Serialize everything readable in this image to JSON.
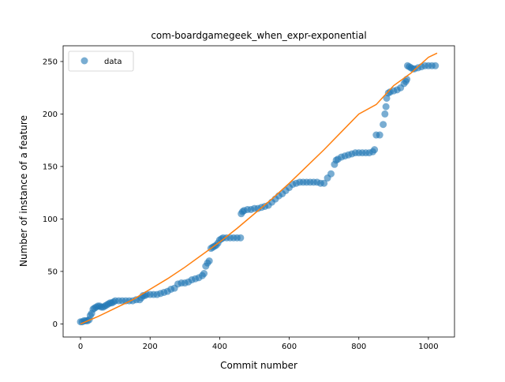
{
  "chart_data": {
    "type": "scatter",
    "title": "com-boardgamegeek_when_expr-exponential",
    "xlabel": "Commit number",
    "ylabel": "Number of instance of a feature",
    "xlim": [
      -50,
      1075
    ],
    "ylim": [
      -12.5,
      265
    ],
    "x_ticks": [
      0,
      200,
      400,
      600,
      800,
      1000
    ],
    "y_ticks": [
      0,
      50,
      100,
      150,
      200,
      250
    ],
    "grid": false,
    "legend": {
      "position": "top-left",
      "entries": [
        "data"
      ]
    },
    "colors": {
      "data": "#1f77b4",
      "fit": "#ff7f0e"
    },
    "series": [
      {
        "name": "data",
        "kind": "scatter",
        "points": [
          [
            0,
            2
          ],
          [
            5,
            2
          ],
          [
            10,
            3
          ],
          [
            15,
            3
          ],
          [
            20,
            3
          ],
          [
            25,
            4
          ],
          [
            28,
            8
          ],
          [
            32,
            10
          ],
          [
            36,
            14
          ],
          [
            40,
            15
          ],
          [
            45,
            16
          ],
          [
            50,
            17
          ],
          [
            55,
            17
          ],
          [
            60,
            16
          ],
          [
            65,
            16
          ],
          [
            70,
            17
          ],
          [
            75,
            18
          ],
          [
            80,
            19
          ],
          [
            85,
            20
          ],
          [
            90,
            20
          ],
          [
            95,
            21
          ],
          [
            100,
            22
          ],
          [
            110,
            22
          ],
          [
            120,
            22
          ],
          [
            130,
            22
          ],
          [
            140,
            22
          ],
          [
            150,
            22
          ],
          [
            160,
            23
          ],
          [
            170,
            23
          ],
          [
            175,
            25
          ],
          [
            180,
            27
          ],
          [
            185,
            27
          ],
          [
            190,
            28
          ],
          [
            200,
            28
          ],
          [
            210,
            28
          ],
          [
            220,
            28
          ],
          [
            230,
            29
          ],
          [
            240,
            30
          ],
          [
            250,
            31
          ],
          [
            260,
            33
          ],
          [
            270,
            34
          ],
          [
            280,
            38
          ],
          [
            290,
            39
          ],
          [
            300,
            39
          ],
          [
            310,
            40
          ],
          [
            320,
            42
          ],
          [
            330,
            43
          ],
          [
            340,
            44
          ],
          [
            350,
            46
          ],
          [
            355,
            48
          ],
          [
            360,
            55
          ],
          [
            365,
            58
          ],
          [
            370,
            60
          ],
          [
            375,
            72
          ],
          [
            380,
            73
          ],
          [
            385,
            74
          ],
          [
            390,
            75
          ],
          [
            395,
            77
          ],
          [
            400,
            80
          ],
          [
            405,
            81
          ],
          [
            410,
            82
          ],
          [
            420,
            82
          ],
          [
            430,
            82
          ],
          [
            440,
            82
          ],
          [
            450,
            82
          ],
          [
            460,
            82
          ],
          [
            462,
            105
          ],
          [
            466,
            107
          ],
          [
            470,
            108
          ],
          [
            480,
            109
          ],
          [
            490,
            109
          ],
          [
            500,
            110
          ],
          [
            510,
            110
          ],
          [
            520,
            111
          ],
          [
            530,
            112
          ],
          [
            540,
            113
          ],
          [
            550,
            116
          ],
          [
            560,
            119
          ],
          [
            570,
            122
          ],
          [
            580,
            124
          ],
          [
            590,
            127
          ],
          [
            600,
            130
          ],
          [
            610,
            133
          ],
          [
            620,
            134
          ],
          [
            630,
            135
          ],
          [
            640,
            135
          ],
          [
            650,
            135
          ],
          [
            660,
            135
          ],
          [
            670,
            135
          ],
          [
            680,
            135
          ],
          [
            690,
            134
          ],
          [
            700,
            134
          ],
          [
            710,
            139
          ],
          [
            720,
            143
          ],
          [
            730,
            152
          ],
          [
            735,
            156
          ],
          [
            740,
            157
          ],
          [
            750,
            159
          ],
          [
            760,
            160
          ],
          [
            770,
            161
          ],
          [
            780,
            162
          ],
          [
            790,
            163
          ],
          [
            800,
            163
          ],
          [
            810,
            163
          ],
          [
            820,
            163
          ],
          [
            830,
            163
          ],
          [
            840,
            164
          ],
          [
            845,
            166
          ],
          [
            850,
            180
          ],
          [
            860,
            180
          ],
          [
            870,
            190
          ],
          [
            875,
            200
          ],
          [
            878,
            207
          ],
          [
            880,
            215
          ],
          [
            885,
            220
          ],
          [
            890,
            221
          ],
          [
            900,
            222
          ],
          [
            910,
            223
          ],
          [
            920,
            225
          ],
          [
            930,
            229
          ],
          [
            935,
            231
          ],
          [
            938,
            233
          ],
          [
            940,
            246
          ],
          [
            945,
            245
          ],
          [
            950,
            244
          ],
          [
            955,
            243
          ],
          [
            960,
            243
          ],
          [
            970,
            244
          ],
          [
            980,
            245
          ],
          [
            990,
            246
          ],
          [
            1000,
            246
          ],
          [
            1010,
            246
          ],
          [
            1020,
            246
          ]
        ]
      },
      {
        "kind": "line",
        "x": [
          0,
          50,
          100,
          150,
          200,
          250,
          300,
          350,
          400,
          450,
          500,
          550,
          600,
          650,
          700,
          750,
          800,
          850,
          900,
          950,
          1000,
          1025
        ],
        "y": [
          0,
          7,
          15,
          23,
          33,
          43,
          54,
          66,
          78,
          91,
          105,
          119,
          134,
          150,
          166,
          183,
          200,
          209,
          227,
          239,
          254,
          258
        ]
      }
    ]
  }
}
